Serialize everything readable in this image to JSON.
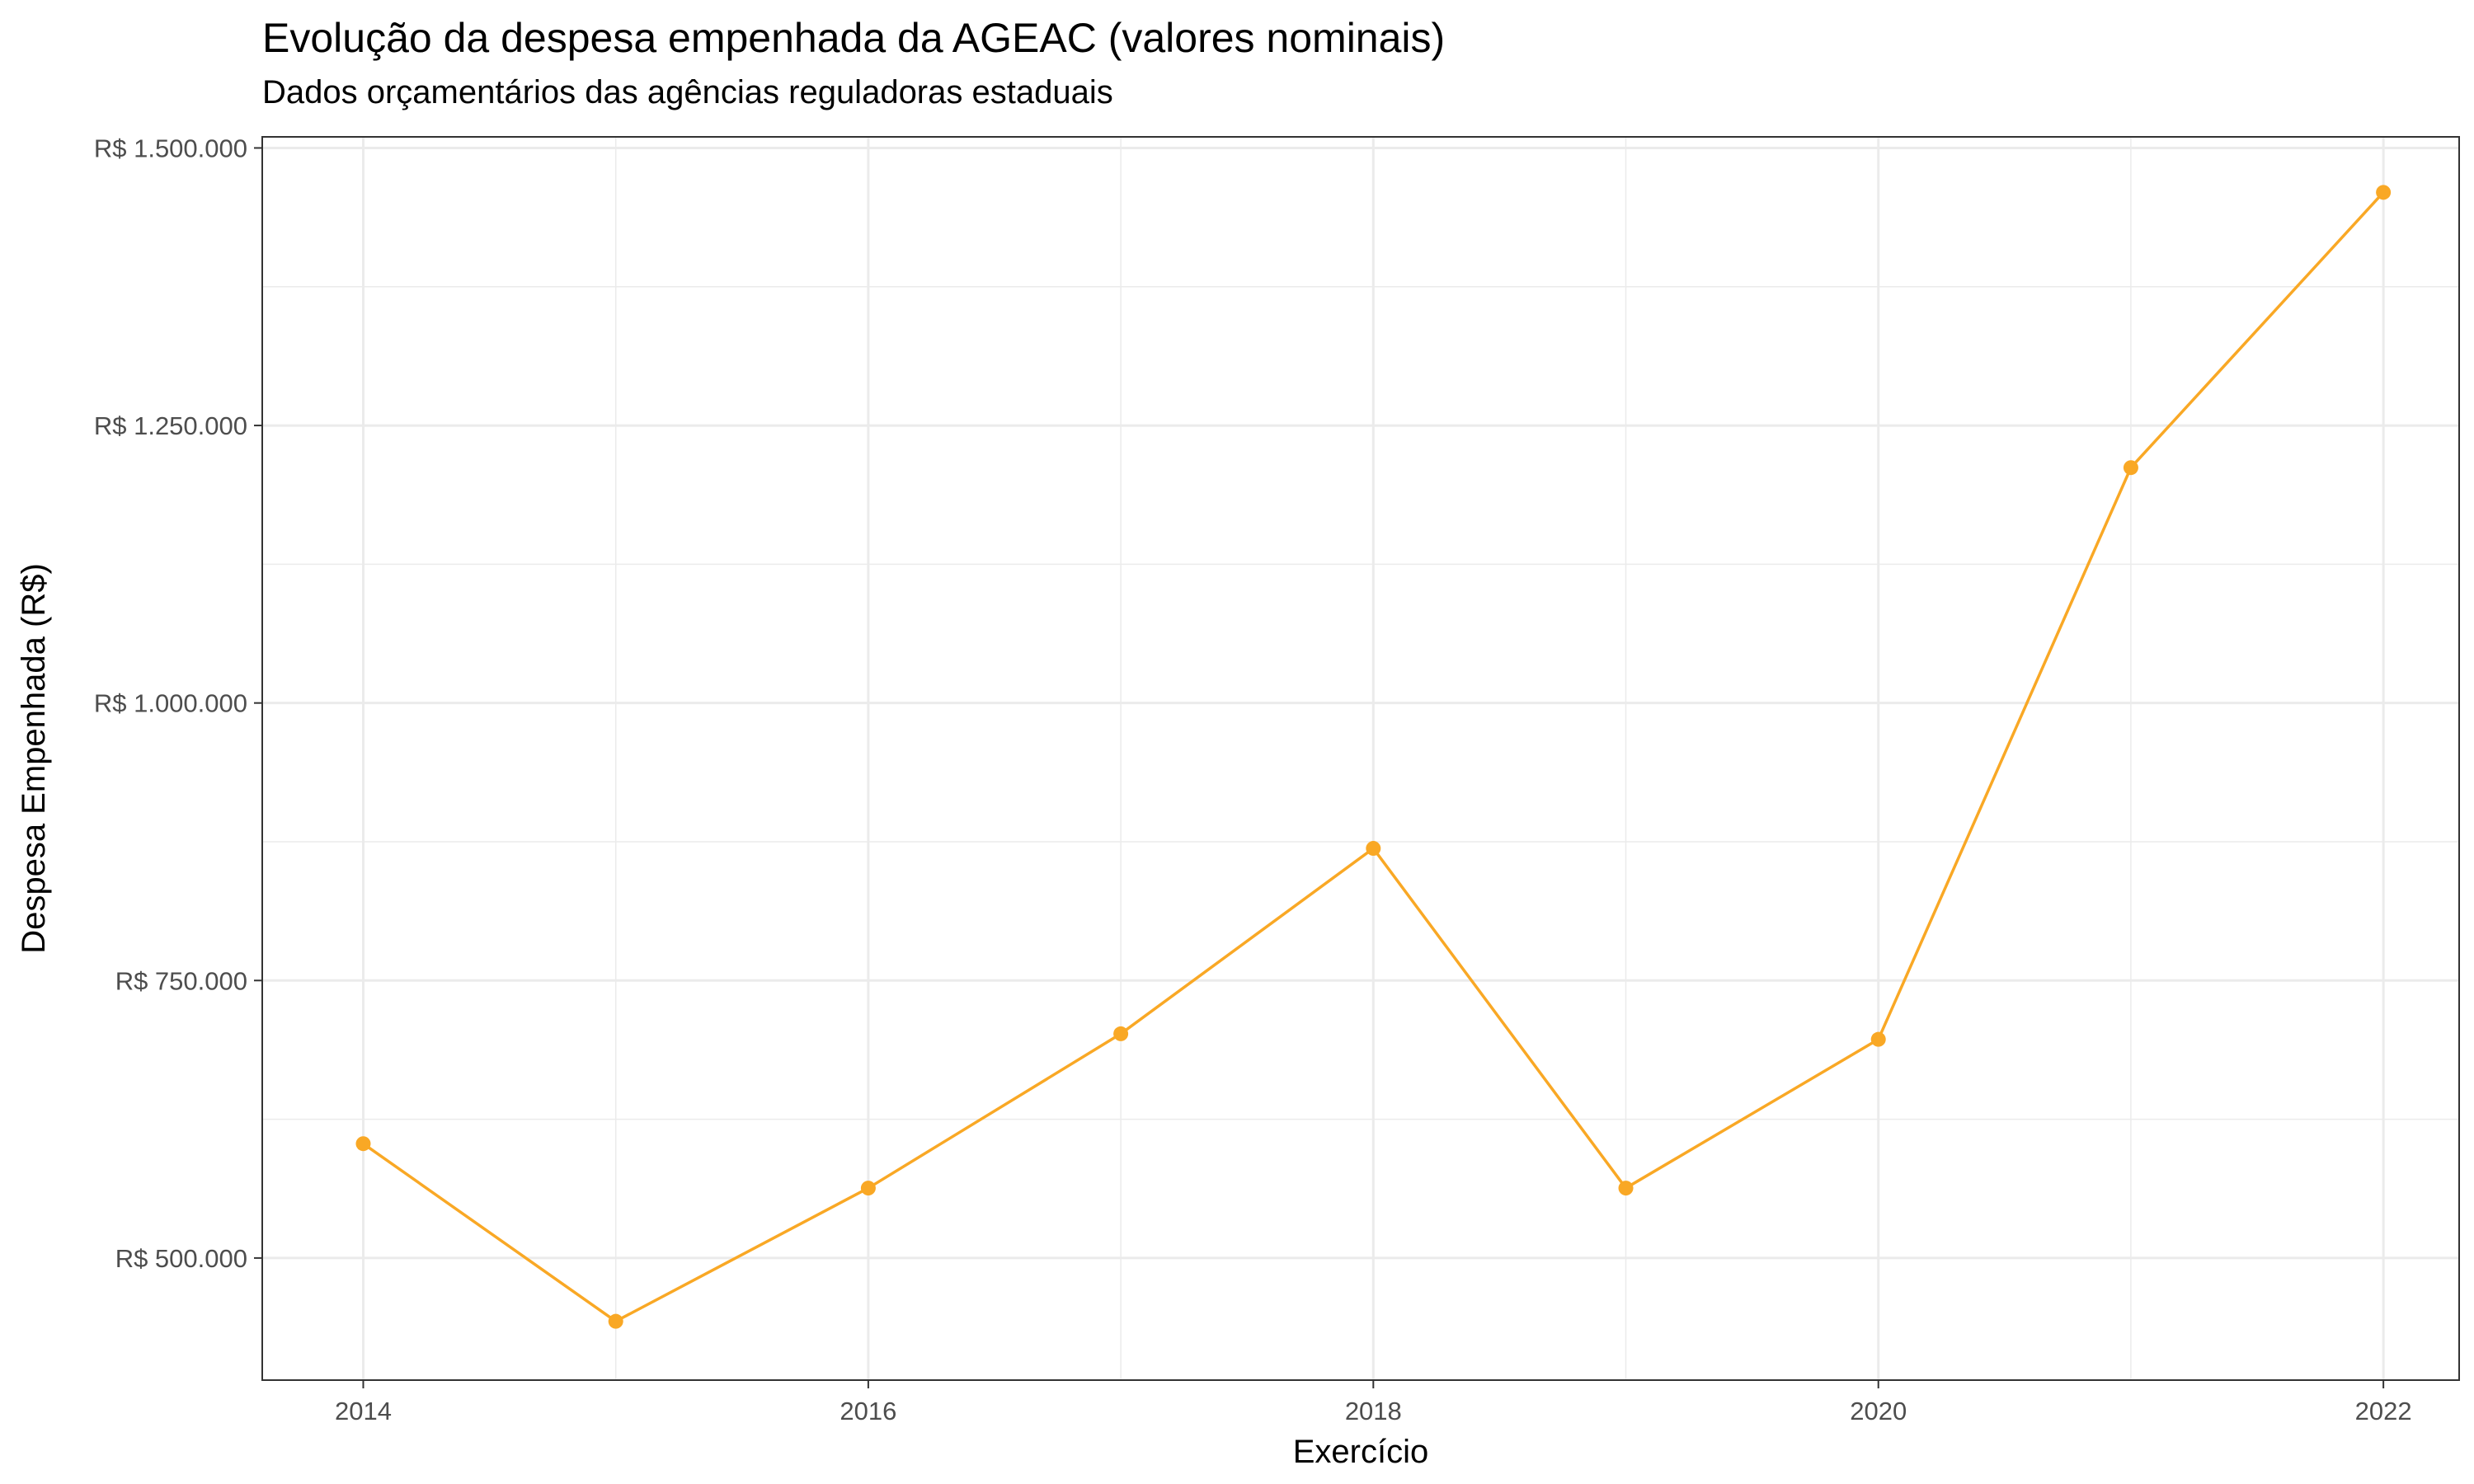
{
  "chart_data": {
    "type": "line",
    "title": "Evolução da despesa empenhada da AGEAC (valores nominais)",
    "subtitle": "Dados orçamentários das agências reguladoras estaduais",
    "xlabel": "Exercício",
    "ylabel": "Despesa Empenhada (R$)",
    "x": [
      2014,
      2015,
      2016,
      2017,
      2018,
      2019,
      2020,
      2021,
      2022
    ],
    "series": [
      {
        "values": [
          603000,
          443000,
          563000,
          702000,
          869000,
          563000,
          697000,
          1212000,
          1460000
        ]
      }
    ],
    "xlim": [
      2013.6,
      2022.3
    ],
    "ylim": [
      390000,
      1510000
    ],
    "x_ticks": [
      2014,
      2016,
      2018,
      2020,
      2022
    ],
    "x_tick_labels": [
      "2014",
      "2016",
      "2018",
      "2020",
      "2022"
    ],
    "y_ticks": [
      500000,
      750000,
      1000000,
      1250000,
      1500000
    ],
    "y_tick_labels": [
      "R$ 500.000",
      "R$ 750.000",
      "R$ 1.000.000",
      "R$ 1.250.000",
      "R$ 1.500.000"
    ],
    "grid": true,
    "legend": "none",
    "line_color": "#F9A825",
    "panel_border_color": "#333333",
    "grid_color": "#EBEBEB"
  }
}
